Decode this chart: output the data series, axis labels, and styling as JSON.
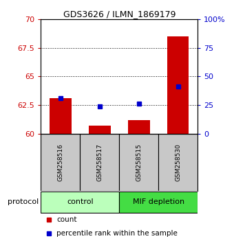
{
  "title": "GDS3626 / ILMN_1869179",
  "samples": [
    "GSM258516",
    "GSM258517",
    "GSM258515",
    "GSM258530"
  ],
  "bar_values": [
    63.1,
    60.7,
    61.2,
    68.5
  ],
  "bar_baseline": 60,
  "blue_values": [
    63.1,
    62.4,
    62.6,
    64.1
  ],
  "bar_color": "#cc0000",
  "blue_color": "#0000cc",
  "ylim_left": [
    60,
    70
  ],
  "yticks_left": [
    60,
    62.5,
    65,
    67.5,
    70
  ],
  "ylim_right": [
    0,
    100
  ],
  "yticks_right": [
    0,
    25,
    50,
    75,
    100
  ],
  "ytick_labels_right": [
    "0",
    "25",
    "50",
    "75",
    "100%"
  ],
  "groups": [
    {
      "label": "control",
      "samples": [
        0,
        1
      ],
      "color": "#bbffbb"
    },
    {
      "label": "MIF depletion",
      "samples": [
        2,
        3
      ],
      "color": "#44dd44"
    }
  ],
  "protocol_label": "protocol",
  "legend_count": "count",
  "legend_percentile": "percentile rank within the sample",
  "bar_width": 0.55,
  "tick_label_color_left": "#cc0000",
  "tick_label_color_right": "#0000cc",
  "background_sample": "#c8c8c8",
  "sample_box_edge": "#888888"
}
